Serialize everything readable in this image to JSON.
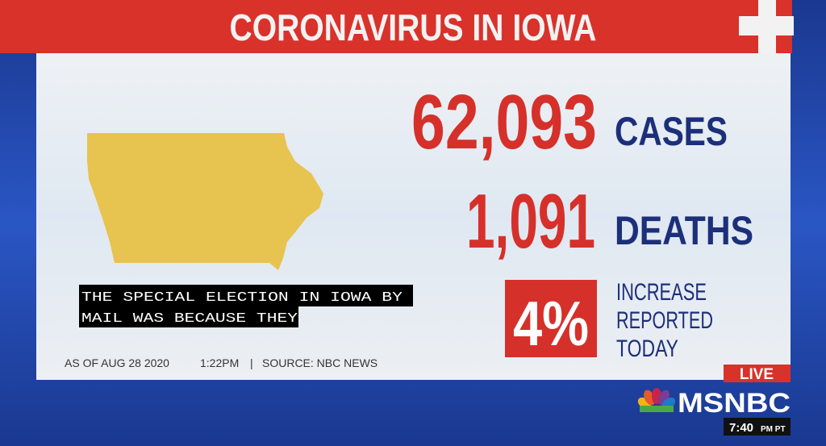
{
  "header": {
    "title": "CORONAVIRUS IN IOWA"
  },
  "stats": [
    {
      "value": "62,093",
      "label": "CASES"
    },
    {
      "value": "1,091",
      "label": "DEATHS"
    },
    {
      "value": "4%",
      "label_lines": [
        "INCREASE",
        "REPORTED",
        "TODAY"
      ]
    }
  ],
  "caption": {
    "lines": [
      "THE SPECIAL ELECTION IN IOWA BY",
      "MAIL WAS BECAUSE THEY"
    ]
  },
  "footer": {
    "date": "AS OF AUG 28 2020",
    "time": "1:22PM",
    "separator": "|",
    "source": "SOURCE: NBC NEWS"
  },
  "network": {
    "live": "LIVE",
    "logo": "MSNBC",
    "clock": "7:40",
    "zone": "PM PT"
  }
}
